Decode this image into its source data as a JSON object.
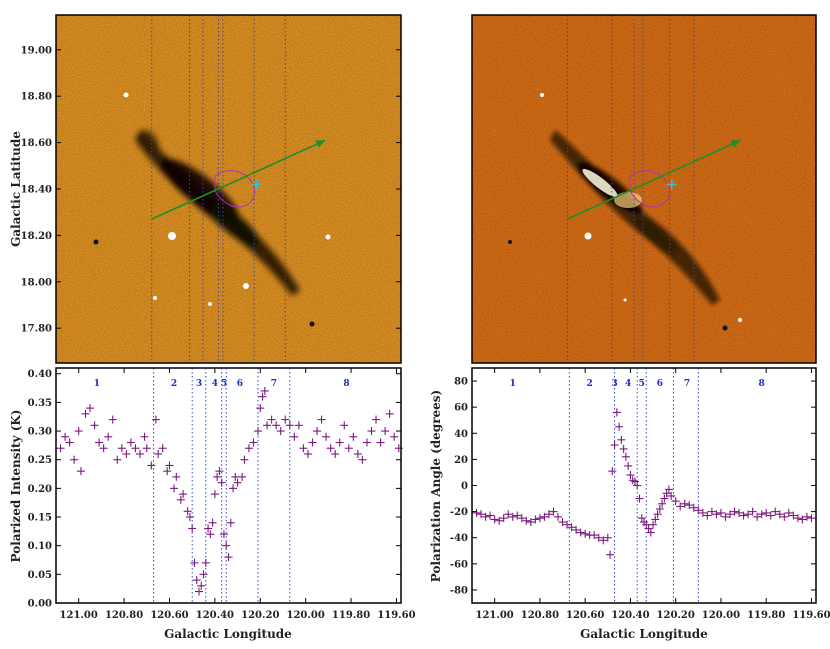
{
  "chart_data": [
    {
      "type": "image",
      "panel": "top-left",
      "ylabel": "Galactic Latitude",
      "xlim": [
        121.1,
        119.55
      ],
      "ylim": [
        17.65,
        19.15
      ],
      "yticks": [
        "19.00",
        "18.80",
        "18.60",
        "18.40",
        "18.20",
        "18.00",
        "17.80"
      ],
      "ytick_values": [
        19.0,
        18.8,
        18.6,
        18.4,
        18.2,
        18.0,
        17.8
      ],
      "colormap_bg": "#f6a126",
      "arrow_color": "#1f8f2a",
      "contour_color": "#b030c0",
      "cross_color": "#3cc0d8",
      "divider_color": "#3344cc",
      "arrow": {
        "from": [
          120.67,
          18.27
        ],
        "to": [
          119.89,
          18.61
        ]
      },
      "cross": [
        120.2,
        18.42
      ]
    },
    {
      "type": "image",
      "panel": "top-right",
      "xlim": [
        121.1,
        119.55
      ],
      "ylim": [
        17.65,
        19.15
      ],
      "colormap_bg": "#ee7a18",
      "arrow_color": "#1f8f2a",
      "contour_color": "#b030c0",
      "cross_color": "#3cc0d8",
      "arrow": {
        "from": [
          120.67,
          18.27
        ],
        "to": [
          119.89,
          18.61
        ]
      },
      "cross": [
        120.2,
        18.42
      ]
    },
    {
      "type": "scatter",
      "panel": "bottom-left",
      "xlabel": "Galactic Longitude",
      "ylabel": "Polarized Intensity (K)",
      "xlim": [
        121.1,
        119.58
      ],
      "ylim": [
        0.0,
        0.41
      ],
      "xticks": [
        "121.00",
        "120.80",
        "120.60",
        "120.40",
        "120.20",
        "120.00",
        "119.80",
        "119.60"
      ],
      "xtick_values": [
        121.0,
        120.8,
        120.6,
        120.4,
        120.2,
        120.0,
        119.8,
        119.6
      ],
      "yticks": [
        "0.40",
        "0.35",
        "0.30",
        "0.25",
        "0.20",
        "0.15",
        "0.10",
        "0.05",
        "0.00"
      ],
      "ytick_values": [
        0.4,
        0.35,
        0.3,
        0.25,
        0.2,
        0.15,
        0.1,
        0.05,
        0.0
      ],
      "marker_color": "#7a1a7e",
      "points": [
        [
          121.08,
          0.27
        ],
        [
          121.06,
          0.29
        ],
        [
          121.04,
          0.28
        ],
        [
          121.02,
          0.25
        ],
        [
          121.0,
          0.3
        ],
        [
          120.99,
          0.23
        ],
        [
          120.97,
          0.33
        ],
        [
          120.95,
          0.34
        ],
        [
          120.93,
          0.31
        ],
        [
          120.91,
          0.28
        ],
        [
          120.89,
          0.27
        ],
        [
          120.87,
          0.29
        ],
        [
          120.85,
          0.32
        ],
        [
          120.83,
          0.25
        ],
        [
          120.81,
          0.27
        ],
        [
          120.79,
          0.26
        ],
        [
          120.77,
          0.28
        ],
        [
          120.75,
          0.27
        ],
        [
          120.73,
          0.26
        ],
        [
          120.71,
          0.29
        ],
        [
          120.7,
          0.27
        ],
        [
          120.68,
          0.24
        ],
        [
          120.66,
          0.32
        ],
        [
          120.65,
          0.26
        ],
        [
          120.63,
          0.27
        ],
        [
          120.61,
          0.23
        ],
        [
          120.6,
          0.24
        ],
        [
          120.58,
          0.2
        ],
        [
          120.57,
          0.22
        ],
        [
          120.55,
          0.18
        ],
        [
          120.54,
          0.19
        ],
        [
          120.52,
          0.16
        ],
        [
          120.51,
          0.15
        ],
        [
          120.5,
          0.13
        ],
        [
          120.49,
          0.07
        ],
        [
          120.48,
          0.04
        ],
        [
          120.47,
          0.02
        ],
        [
          120.46,
          0.03
        ],
        [
          120.45,
          0.05
        ],
        [
          120.44,
          0.07
        ],
        [
          120.43,
          0.13
        ],
        [
          120.42,
          0.12
        ],
        [
          120.41,
          0.14
        ],
        [
          120.4,
          0.19
        ],
        [
          120.39,
          0.22
        ],
        [
          120.38,
          0.23
        ],
        [
          120.37,
          0.21
        ],
        [
          120.36,
          0.12
        ],
        [
          120.35,
          0.1
        ],
        [
          120.34,
          0.08
        ],
        [
          120.33,
          0.14
        ],
        [
          120.32,
          0.2
        ],
        [
          120.31,
          0.22
        ],
        [
          120.3,
          0.21
        ],
        [
          120.28,
          0.22
        ],
        [
          120.27,
          0.25
        ],
        [
          120.25,
          0.27
        ],
        [
          120.23,
          0.28
        ],
        [
          120.21,
          0.3
        ],
        [
          120.2,
          0.34
        ],
        [
          120.19,
          0.36
        ],
        [
          120.18,
          0.37
        ],
        [
          120.17,
          0.31
        ],
        [
          120.15,
          0.32
        ],
        [
          120.13,
          0.31
        ],
        [
          120.11,
          0.3
        ],
        [
          120.09,
          0.32
        ],
        [
          120.07,
          0.31
        ],
        [
          120.05,
          0.29
        ],
        [
          120.03,
          0.31
        ],
        [
          120.01,
          0.27
        ],
        [
          119.99,
          0.26
        ],
        [
          119.97,
          0.28
        ],
        [
          119.95,
          0.3
        ],
        [
          119.93,
          0.32
        ],
        [
          119.91,
          0.29
        ],
        [
          119.89,
          0.27
        ],
        [
          119.87,
          0.26
        ],
        [
          119.85,
          0.28
        ],
        [
          119.83,
          0.31
        ],
        [
          119.81,
          0.27
        ],
        [
          119.79,
          0.29
        ],
        [
          119.77,
          0.26
        ],
        [
          119.75,
          0.25
        ],
        [
          119.73,
          0.28
        ],
        [
          119.71,
          0.3
        ],
        [
          119.69,
          0.32
        ],
        [
          119.67,
          0.28
        ],
        [
          119.65,
          0.3
        ],
        [
          119.63,
          0.33
        ],
        [
          119.61,
          0.29
        ],
        [
          119.59,
          0.27
        ]
      ],
      "dividers": [
        120.67,
        120.5,
        120.44,
        120.37,
        120.35,
        120.21,
        120.07
      ],
      "segments": [
        {
          "label": "1",
          "x": 120.92
        },
        {
          "label": "2",
          "x": 120.58
        },
        {
          "label": "3",
          "x": 120.47
        },
        {
          "label": "4",
          "x": 120.4
        },
        {
          "label": "5",
          "x": 120.36
        },
        {
          "label": "6",
          "x": 120.29
        },
        {
          "label": "7",
          "x": 120.14
        },
        {
          "label": "8",
          "x": 119.82
        }
      ]
    },
    {
      "type": "scatter",
      "panel": "bottom-right",
      "xlabel": "Galactic Longitude",
      "ylabel": "Polarization Angle (degrees)",
      "xlim": [
        121.1,
        119.58
      ],
      "ylim": [
        -90,
        90
      ],
      "xticks": [
        "121.00",
        "120.80",
        "120.60",
        "120.40",
        "120.20",
        "120.00",
        "119.80",
        "119.60"
      ],
      "xtick_values": [
        121.0,
        120.8,
        120.6,
        120.4,
        120.2,
        120.0,
        119.8,
        119.6
      ],
      "yticks": [
        "80",
        "60",
        "40",
        "20",
        "0",
        "-20",
        "-40",
        "-60",
        "-80"
      ],
      "ytick_values": [
        80,
        60,
        40,
        20,
        0,
        -20,
        -40,
        -60,
        -80
      ],
      "marker_color": "#7a1a7e",
      "points": [
        [
          121.08,
          -21
        ],
        [
          121.06,
          -22
        ],
        [
          121.04,
          -24
        ],
        [
          121.02,
          -23
        ],
        [
          121.0,
          -26
        ],
        [
          120.98,
          -27
        ],
        [
          120.96,
          -25
        ],
        [
          120.94,
          -22
        ],
        [
          120.92,
          -24
        ],
        [
          120.9,
          -23
        ],
        [
          120.88,
          -25
        ],
        [
          120.86,
          -27
        ],
        [
          120.84,
          -28
        ],
        [
          120.82,
          -26
        ],
        [
          120.8,
          -25
        ],
        [
          120.78,
          -24
        ],
        [
          120.76,
          -22
        ],
        [
          120.74,
          -20
        ],
        [
          120.72,
          -24
        ],
        [
          120.7,
          -28
        ],
        [
          120.68,
          -30
        ],
        [
          120.66,
          -32
        ],
        [
          120.64,
          -34
        ],
        [
          120.62,
          -36
        ],
        [
          120.6,
          -37
        ],
        [
          120.58,
          -38
        ],
        [
          120.56,
          -38
        ],
        [
          120.54,
          -40
        ],
        [
          120.52,
          -42
        ],
        [
          120.5,
          -40
        ],
        [
          120.49,
          -53
        ],
        [
          120.48,
          11
        ],
        [
          120.47,
          31
        ],
        [
          120.46,
          56
        ],
        [
          120.45,
          45
        ],
        [
          120.44,
          35
        ],
        [
          120.43,
          28
        ],
        [
          120.42,
          22
        ],
        [
          120.41,
          15
        ],
        [
          120.4,
          8
        ],
        [
          120.39,
          4
        ],
        [
          120.38,
          3
        ],
        [
          120.37,
          0
        ],
        [
          120.36,
          -10
        ],
        [
          120.35,
          -25
        ],
        [
          120.34,
          -28
        ],
        [
          120.33,
          -30
        ],
        [
          120.32,
          -33
        ],
        [
          120.31,
          -36
        ],
        [
          120.3,
          -30
        ],
        [
          120.29,
          -26
        ],
        [
          120.28,
          -22
        ],
        [
          120.27,
          -18
        ],
        [
          120.26,
          -14
        ],
        [
          120.25,
          -10
        ],
        [
          120.24,
          -6
        ],
        [
          120.23,
          -3
        ],
        [
          120.22,
          -8
        ],
        [
          120.2,
          -12
        ],
        [
          120.18,
          -16
        ],
        [
          120.16,
          -14
        ],
        [
          120.14,
          -15
        ],
        [
          120.12,
          -17
        ],
        [
          120.1,
          -19
        ],
        [
          120.08,
          -21
        ],
        [
          120.06,
          -23
        ],
        [
          120.04,
          -20
        ],
        [
          120.02,
          -22
        ],
        [
          120.0,
          -21
        ],
        [
          119.98,
          -24
        ],
        [
          119.96,
          -22
        ],
        [
          119.94,
          -20
        ],
        [
          119.92,
          -21
        ],
        [
          119.9,
          -23
        ],
        [
          119.88,
          -22
        ],
        [
          119.86,
          -20
        ],
        [
          119.84,
          -24
        ],
        [
          119.82,
          -22
        ],
        [
          119.8,
          -21
        ],
        [
          119.78,
          -23
        ],
        [
          119.76,
          -20
        ],
        [
          119.74,
          -22
        ],
        [
          119.72,
          -24
        ],
        [
          119.7,
          -21
        ],
        [
          119.68,
          -23
        ],
        [
          119.66,
          -25
        ],
        [
          119.64,
          -26
        ],
        [
          119.62,
          -24
        ],
        [
          119.6,
          -25
        ]
      ],
      "dividers": [
        120.67,
        120.47,
        120.37,
        120.33,
        120.21,
        120.1
      ],
      "segments": [
        {
          "label": "1",
          "x": 120.92
        },
        {
          "label": "2",
          "x": 120.58
        },
        {
          "label": "3",
          "x": 120.47
        },
        {
          "label": "4",
          "x": 120.41
        },
        {
          "label": "5",
          "x": 120.35
        },
        {
          "label": "6",
          "x": 120.27
        },
        {
          "label": "7",
          "x": 120.15
        },
        {
          "label": "8",
          "x": 119.82
        }
      ]
    }
  ]
}
